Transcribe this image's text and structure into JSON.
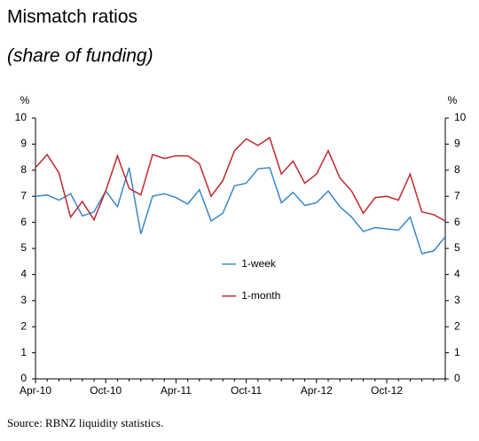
{
  "chart_data": {
    "type": "line",
    "title": "Mismatch ratios",
    "subtitle": "(share of funding)",
    "source": "Source: RBNZ liquidity statistics.",
    "y_label": "%",
    "y2_label": "%",
    "categories": [
      "Apr-10",
      null,
      null,
      null,
      null,
      null,
      "Oct-10",
      null,
      null,
      null,
      null,
      null,
      "Apr-11",
      null,
      null,
      null,
      null,
      null,
      "Oct-11",
      null,
      null,
      null,
      null,
      null,
      "Apr-12",
      null,
      null,
      null,
      null,
      null,
      "Oct-12",
      null,
      null,
      null,
      null,
      null
    ],
    "series": [
      {
        "name": "1-week",
        "color": "#3a87c8",
        "values": [
          7.0,
          7.05,
          6.85,
          7.1,
          6.25,
          6.4,
          7.2,
          6.6,
          8.1,
          5.55,
          7.0,
          7.1,
          6.95,
          6.7,
          7.25,
          6.05,
          6.35,
          7.4,
          7.5,
          8.05,
          8.1,
          6.75,
          7.15,
          6.65,
          6.75,
          7.2,
          6.6,
          6.2,
          5.65,
          5.8,
          5.75,
          5.7,
          6.2,
          4.8,
          4.9,
          5.45
        ]
      },
      {
        "name": "1-month",
        "color": "#c0272d",
        "values": [
          8.1,
          8.6,
          7.9,
          6.2,
          6.8,
          6.1,
          7.2,
          8.55,
          7.3,
          7.05,
          8.6,
          8.45,
          8.55,
          8.55,
          8.25,
          7.0,
          7.6,
          8.75,
          9.2,
          8.95,
          9.25,
          7.85,
          8.35,
          7.5,
          7.85,
          8.75,
          7.7,
          7.2,
          6.35,
          6.95,
          7.0,
          6.85,
          7.85,
          6.4,
          6.3,
          6.05
        ]
      }
    ],
    "ylim": [
      0,
      10
    ],
    "yticks": [
      0,
      1,
      2,
      3,
      4,
      5,
      6,
      7,
      8,
      9,
      10
    ],
    "y2lim": [
      0,
      10
    ],
    "y2ticks": [
      0,
      1,
      2,
      3,
      4,
      5,
      6,
      7,
      8,
      9,
      10
    ],
    "grid": false,
    "legend": "center"
  }
}
